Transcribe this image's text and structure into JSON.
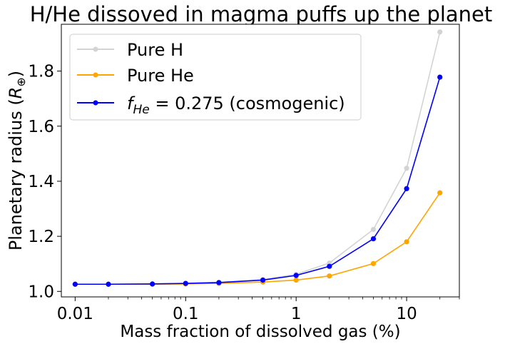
{
  "chart_data": {
    "type": "line",
    "title": "H/He dissoved in magma puffs up the planet",
    "xlabel": "Mass fraction of dissolved gas (%)",
    "ylabel_prefix": "Planetary radius (",
    "ylabel_symbol": "R",
    "ylabel_sub": "⊕",
    "ylabel_suffix": ")",
    "xscale": "log",
    "xlim": [
      0.0075,
      30
    ],
    "ylim": [
      0.98,
      1.97
    ],
    "xticks": [
      0.01,
      0.1,
      1,
      10
    ],
    "xtick_labels": [
      "0.01",
      "0.1",
      "1",
      "10"
    ],
    "yticks": [
      1.0,
      1.2,
      1.4,
      1.6,
      1.8
    ],
    "ytick_labels": [
      "1.0",
      "1.2",
      "1.4",
      "1.6",
      "1.8"
    ],
    "grid": false,
    "legend_position": "top-left",
    "x": [
      0.01,
      0.02,
      0.05,
      0.1,
      0.2,
      0.5,
      1,
      2,
      5,
      10,
      20
    ],
    "series": [
      {
        "name": "Pure H",
        "color": "#d3d3d3",
        "values": [
          1.026,
          1.026,
          1.027,
          1.029,
          1.033,
          1.043,
          1.062,
          1.103,
          1.225,
          1.447,
          1.942
        ]
      },
      {
        "name": "Pure He",
        "color": "#ffa500",
        "values": [
          1.026,
          1.026,
          1.026,
          1.027,
          1.029,
          1.034,
          1.041,
          1.056,
          1.101,
          1.18,
          1.358
        ]
      },
      {
        "name_prefix": "f",
        "name_sub": "He",
        "name_suffix": " = 0.275 (cosmogenic)",
        "color": "#0000ff",
        "values": [
          1.026,
          1.026,
          1.027,
          1.029,
          1.032,
          1.041,
          1.058,
          1.091,
          1.191,
          1.373,
          1.778
        ]
      }
    ]
  }
}
